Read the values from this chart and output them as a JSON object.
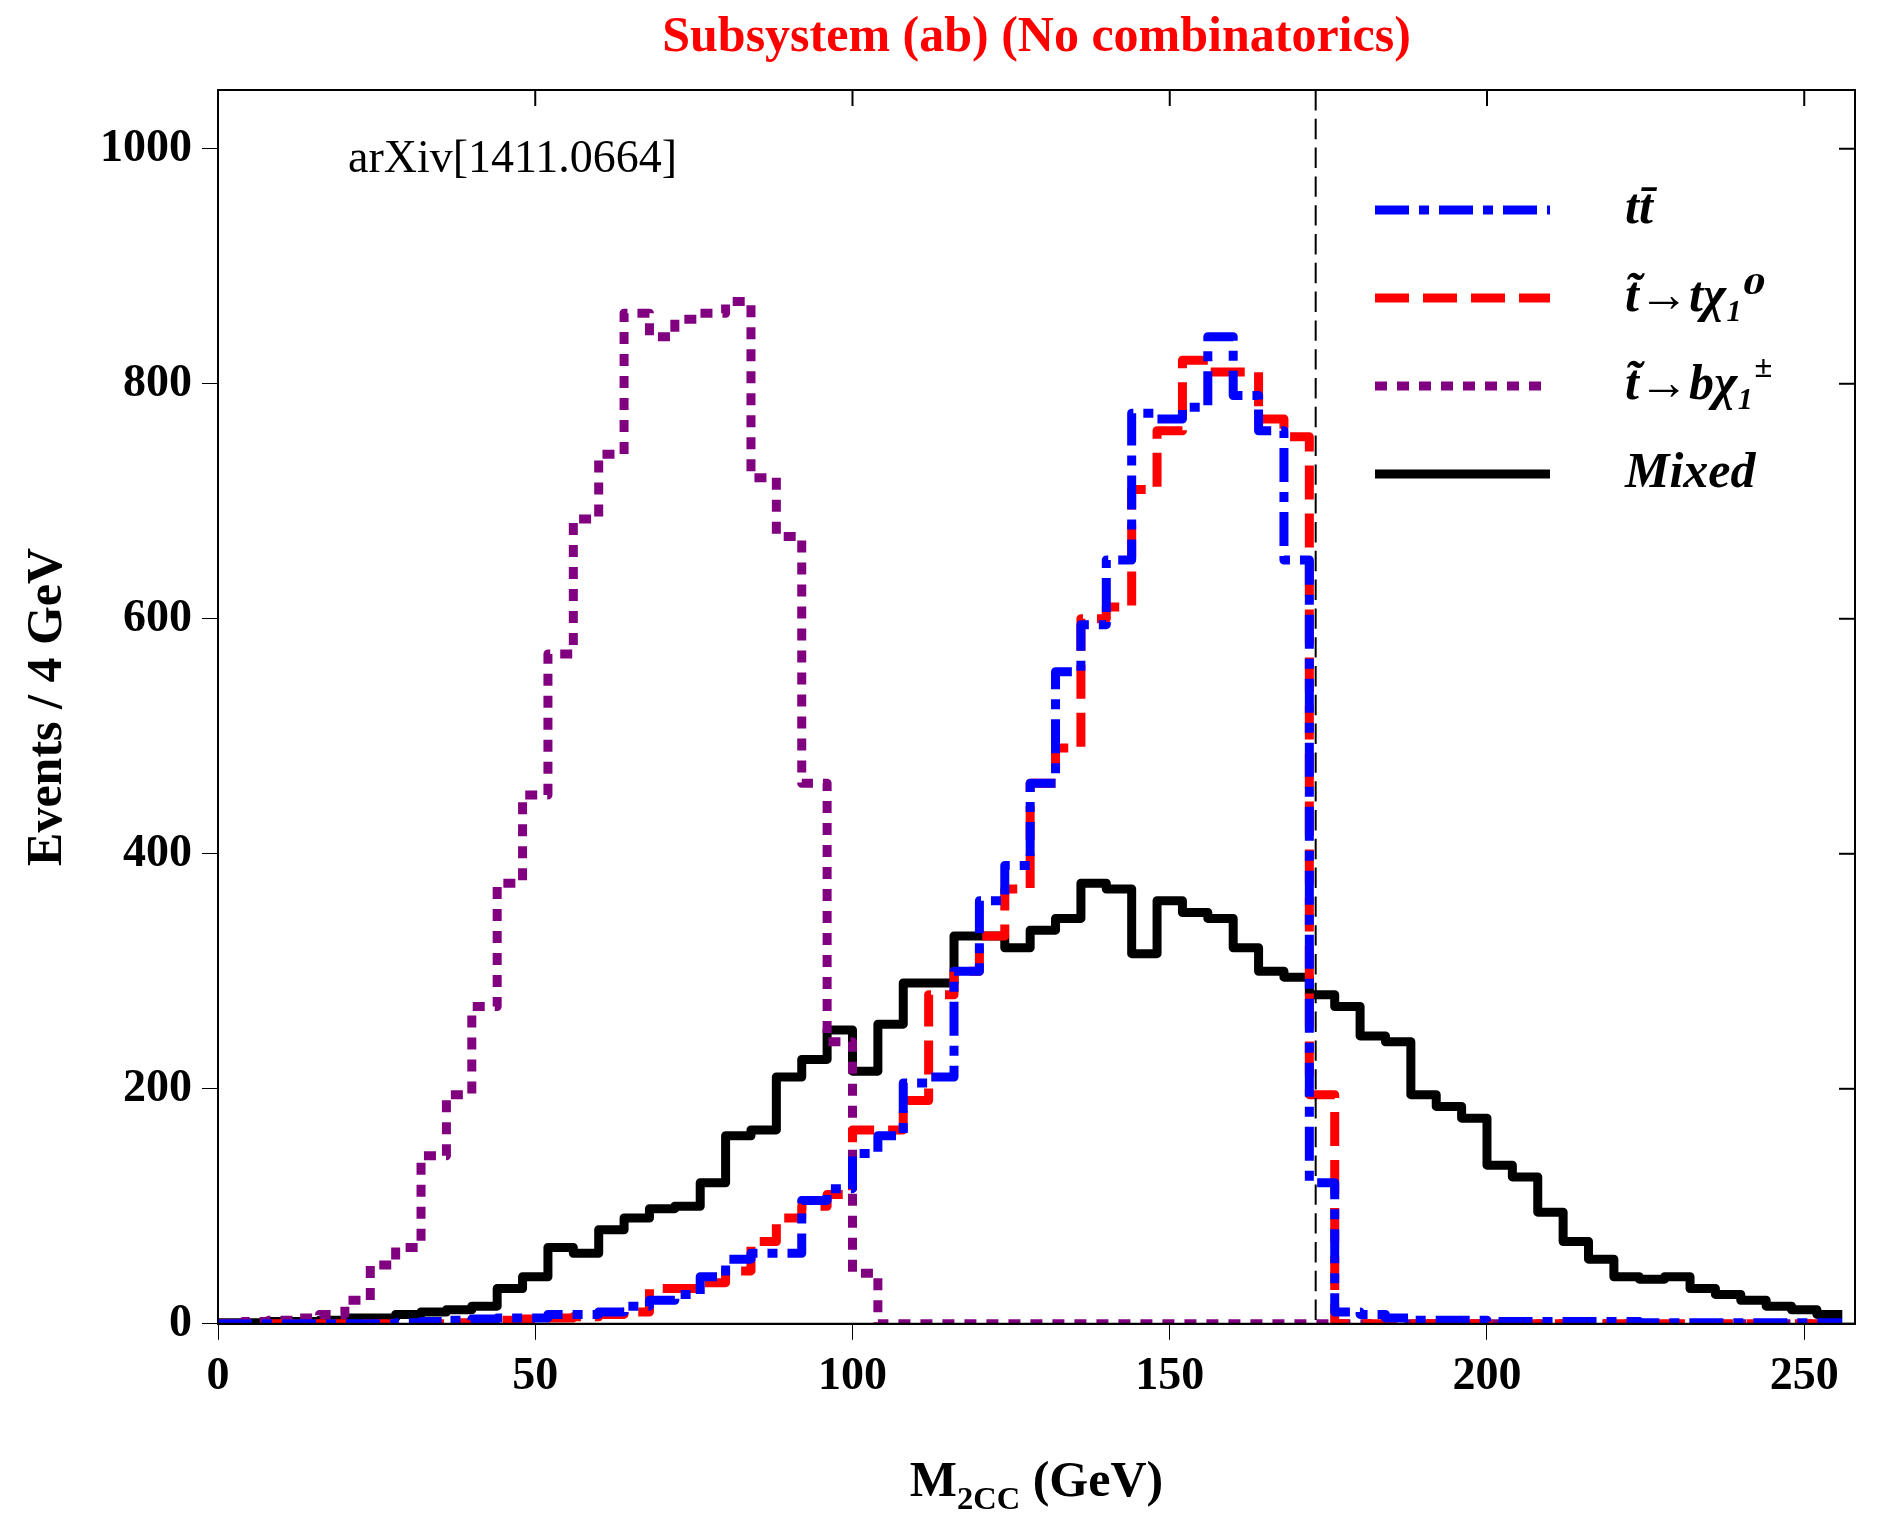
{
  "chart_data": {
    "type": "histogram",
    "title": "Subsystem (ab) (No combinatorics)",
    "xlabel": "M$_{2CC}$ (GeV)",
    "ylabel": "Events / 4 GeV",
    "annotations": [
      "arXiv[1411.0664]"
    ],
    "bins": [
      0,
      4,
      8,
      12,
      16,
      20,
      24,
      28,
      32,
      36,
      40,
      44,
      48,
      52,
      56,
      60,
      64,
      68,
      72,
      76,
      80,
      84,
      88,
      92,
      96,
      100,
      104,
      108,
      112,
      116,
      120,
      124,
      128,
      132,
      136,
      140,
      144,
      148,
      152,
      156,
      160,
      164,
      168,
      172,
      176,
      180,
      184,
      188,
      192,
      196,
      200,
      204,
      208,
      212,
      216,
      220,
      224,
      228,
      232,
      236,
      240,
      244,
      248,
      252,
      256
    ],
    "series": [
      {
        "name": "tt̄",
        "color": "#0000ff",
        "line_style": "dashdot",
        "values": [
          0,
          0,
          0,
          0,
          0,
          0,
          0,
          1,
          2,
          3,
          4,
          5,
          5,
          8,
          8,
          10,
          15,
          20,
          25,
          40,
          55,
          60,
          60,
          105,
          115,
          145,
          160,
          205,
          210,
          300,
          360,
          390,
          460,
          555,
          595,
          650,
          775,
          770,
          780,
          840,
          790,
          760,
          650,
          120,
          10,
          8,
          5,
          3,
          3,
          3,
          2,
          2,
          2,
          2,
          2,
          2,
          1,
          1,
          1,
          1,
          1,
          1,
          1,
          1
        ]
      },
      {
        "name": "t̃→tχ₁⁰",
        "color": "#ff0000",
        "line_style": "dashed",
        "values": [
          0,
          0,
          0,
          0,
          0,
          0,
          0,
          0,
          0,
          1,
          2,
          3,
          4,
          5,
          6,
          8,
          10,
          30,
          30,
          35,
          45,
          70,
          90,
          100,
          110,
          165,
          165,
          190,
          280,
          300,
          330,
          370,
          460,
          490,
          600,
          610,
          710,
          760,
          820,
          810,
          810,
          770,
          755,
          195,
          0,
          0,
          0,
          0,
          0,
          0,
          0,
          0,
          0,
          0,
          0,
          0,
          0,
          0,
          0,
          0,
          0,
          0,
          0,
          0
        ]
      },
      {
        "name": "t̃→bχ₁$^{±}$",
        "color": "#800080",
        "line_style": "dotted",
        "values": [
          0,
          2,
          3,
          5,
          8,
          20,
          50,
          65,
          143,
          195,
          270,
          375,
          450,
          570,
          685,
          740,
          860,
          840,
          855,
          860,
          870,
          720,
          670,
          460,
          240,
          43,
          0,
          0,
          0,
          0,
          0,
          0,
          0,
          0,
          0,
          0,
          0,
          0,
          0,
          0,
          0,
          0,
          0,
          0,
          0,
          0,
          0,
          0,
          0,
          0,
          0,
          0,
          0,
          0,
          0,
          0,
          0,
          0,
          0,
          0,
          0,
          0,
          0,
          0
        ]
      },
      {
        "name": "Mixed",
        "color": "#000000",
        "line_style": "solid",
        "values": [
          1,
          1,
          2,
          2,
          3,
          5,
          5,
          8,
          10,
          12,
          15,
          30,
          40,
          65,
          60,
          80,
          90,
          98,
          100,
          120,
          160,
          165,
          210,
          225,
          250,
          215,
          255,
          290,
          290,
          330,
          330,
          320,
          335,
          345,
          375,
          370,
          315,
          360,
          350,
          345,
          320,
          300,
          295,
          280,
          270,
          245,
          240,
          195,
          185,
          175,
          135,
          125,
          95,
          70,
          55,
          40,
          38,
          40,
          30,
          25,
          20,
          15,
          12,
          8
        ]
      }
    ],
    "ref_lines": [
      {
        "axis": "x",
        "value": 173,
        "color": "#000000",
        "line_style": "dashed"
      }
    ],
    "xlim": [
      0,
      258
    ],
    "xticks": [
      0,
      50,
      100,
      150,
      200,
      250
    ],
    "ylim": [
      0,
      1050
    ],
    "yticks": [
      0,
      200,
      400,
      600,
      800,
      1000
    ],
    "grid": false,
    "legend": "top right",
    "marker": "none"
  }
}
